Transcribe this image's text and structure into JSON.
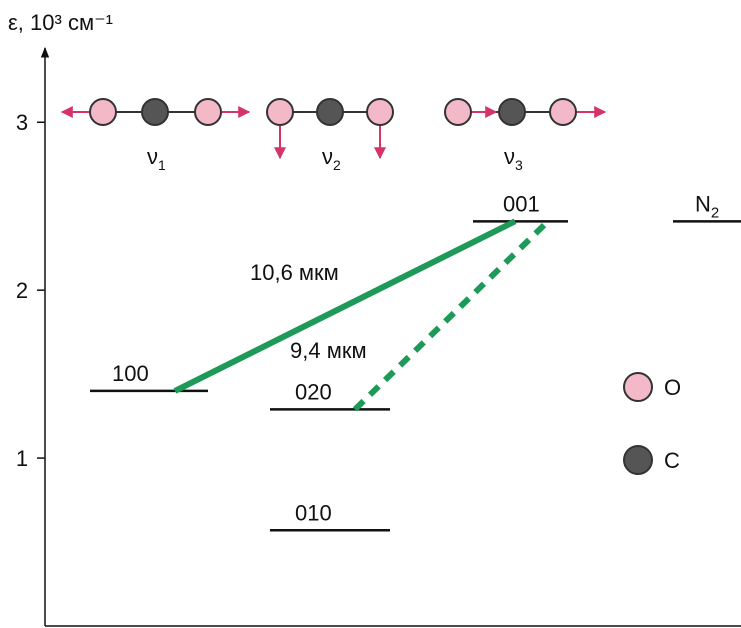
{
  "axis": {
    "label": "ε, 10³ см⁻¹",
    "ylim": [
      0,
      3.46
    ],
    "yticks": [
      1,
      2,
      3
    ]
  },
  "modes": [
    {
      "symbol": "ν",
      "sub": "1"
    },
    {
      "symbol": "ν",
      "sub": "2"
    },
    {
      "symbol": "ν",
      "sub": "3"
    }
  ],
  "levels": [
    {
      "label": "100",
      "energy": 1.4
    },
    {
      "label": "020",
      "energy": 1.29
    },
    {
      "label": "010",
      "energy": 0.57
    },
    {
      "label": "001",
      "energy": 2.41
    },
    {
      "label": "N",
      "sub": "2",
      "energy": 2.41
    }
  ],
  "transitions": [
    {
      "label": "10,6 мкм"
    },
    {
      "label": "9,4 мкм"
    }
  ],
  "legend": [
    {
      "label": "O"
    },
    {
      "label": "C"
    }
  ]
}
